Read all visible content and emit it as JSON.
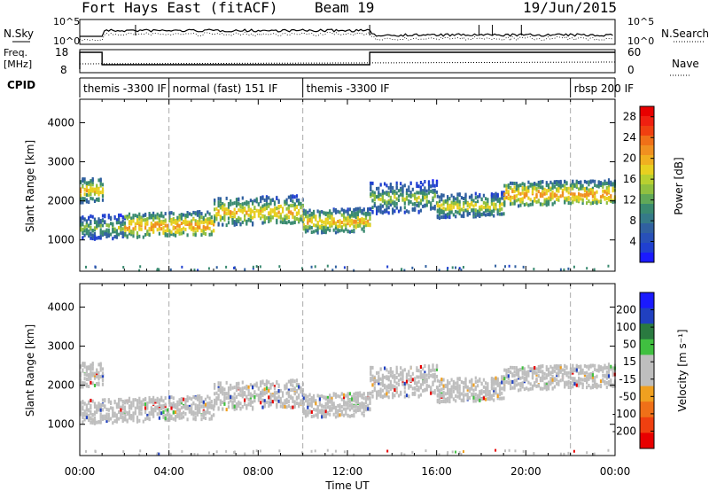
{
  "header": {
    "station": "Fort Hays East (fitACF)",
    "beam": "Beam 19",
    "date": "19/Jun/2015"
  },
  "top_panels": {
    "nsky_label": "N.Sky",
    "nsky_ticks": [
      "10^5",
      "10^0"
    ],
    "nsky_right_ticks": [
      "10^5",
      "10^0"
    ],
    "nsearch_label": "N.Search",
    "freq_label_1": "Freq.",
    "freq_label_2": "[MHz]",
    "freq_ticks": [
      "18",
      "8"
    ],
    "nave_label": "Nave",
    "nave_ticks": [
      "60",
      "0"
    ],
    "cpid_label": "CPID",
    "cpid_segments": [
      {
        "label": "themis -3300 IF",
        "start_h": 0,
        "end_h": 4
      },
      {
        "label": "normal (fast) 151 IF",
        "start_h": 4,
        "end_h": 10
      },
      {
        "label": "themis -3300 IF",
        "start_h": 10,
        "end_h": 22
      },
      {
        "label": "rbsp 200 IF",
        "start_h": 22,
        "end_h": 24
      }
    ]
  },
  "chart_data": [
    {
      "type": "heatmap",
      "panel": "power",
      "ylabel": "Slant Range [km]",
      "xlabel": "",
      "y_ticks": [
        "1000",
        "2000",
        "3000",
        "4000"
      ],
      "ylim": [
        200,
        4600
      ],
      "xlim": [
        0,
        24
      ],
      "colorbar_label": "Power [dB]",
      "colorbar_ticks": [
        "4",
        "8",
        "12",
        "16",
        "20",
        "24",
        "28"
      ],
      "colorbar_range": [
        0,
        30
      ],
      "scatter_bands": [
        {
          "start_h": 0,
          "end_h": 1,
          "center_km": 2300,
          "width_km": 300,
          "power_db": 24
        },
        {
          "start_h": 0,
          "end_h": 2,
          "center_km": 1350,
          "width_km": 300,
          "power_db": 20
        },
        {
          "start_h": 2,
          "end_h": 6,
          "center_km": 1400,
          "width_km": 300,
          "power_db": 26
        },
        {
          "start_h": 6,
          "end_h": 10,
          "center_km": 1750,
          "width_km": 350,
          "power_db": 24
        },
        {
          "start_h": 10,
          "end_h": 13,
          "center_km": 1500,
          "width_km": 300,
          "power_db": 24
        },
        {
          "start_h": 13,
          "end_h": 16,
          "center_km": 2100,
          "width_km": 400,
          "power_db": 20
        },
        {
          "start_h": 16,
          "end_h": 19,
          "center_km": 1900,
          "width_km": 300,
          "power_db": 22
        },
        {
          "start_h": 19,
          "end_h": 24,
          "center_km": 2200,
          "width_km": 300,
          "power_db": 26
        }
      ]
    },
    {
      "type": "heatmap",
      "panel": "velocity",
      "ylabel": "Slant Range [km]",
      "xlabel": "Time UT",
      "x_ticks": [
        "00:00",
        "04:00",
        "08:00",
        "12:00",
        "16:00",
        "20:00",
        "00:00"
      ],
      "y_ticks": [
        "1000",
        "2000",
        "3000",
        "4000"
      ],
      "ylim": [
        200,
        4600
      ],
      "xlim": [
        0,
        24
      ],
      "colorbar_label": "Velocity [m s⁻¹]",
      "colorbar_ticks": [
        "200",
        "100",
        "50",
        "15",
        "-15",
        "-50",
        "-100",
        "-200"
      ],
      "colorbar_range": [
        -250,
        250
      ],
      "dominant_velocity": "ground scatter (grey)"
    }
  ],
  "colors": {
    "ground_scatter": "#bebebe",
    "dashed_marker": "#aaaaaa"
  }
}
